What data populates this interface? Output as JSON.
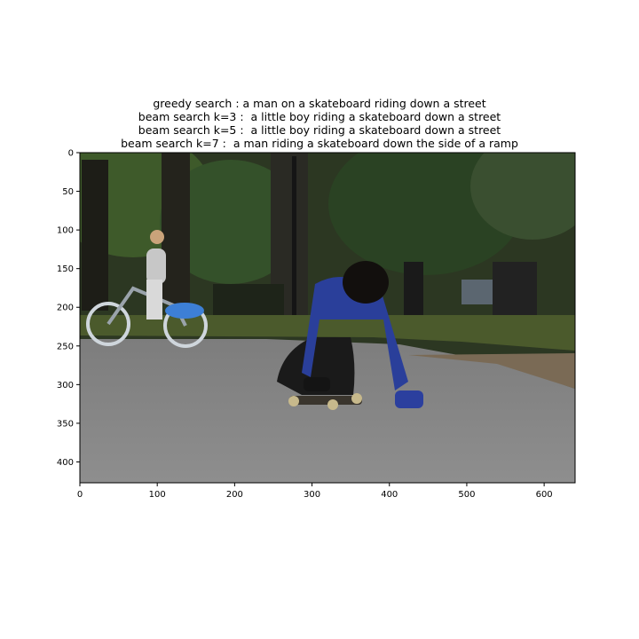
{
  "figure": {
    "title_lines": [
      "greedy search : a man on a skateboard riding down a street",
      "beam search k=3 :  a little boy riding a skateboard down a street",
      "beam search k=5 :  a little boy riding a skateboard down a street",
      "beam search k=7 :  a man riding a skateboard down the side of a ramp"
    ]
  },
  "image_axes": {
    "x_range": [
      0,
      640
    ],
    "y_range": [
      0,
      427
    ],
    "x_ticks": [
      0,
      100,
      200,
      300,
      400,
      500,
      600
    ],
    "y_ticks": [
      0,
      50,
      100,
      150,
      200,
      250,
      300,
      350,
      400
    ]
  },
  "colors": {
    "sky_foliage": "#2f3b24",
    "road": "#8b8b8b",
    "grass": "#4a5a2a",
    "jacket_blue": "#2a3f9a",
    "bike_blue": "#3d7fd6"
  }
}
